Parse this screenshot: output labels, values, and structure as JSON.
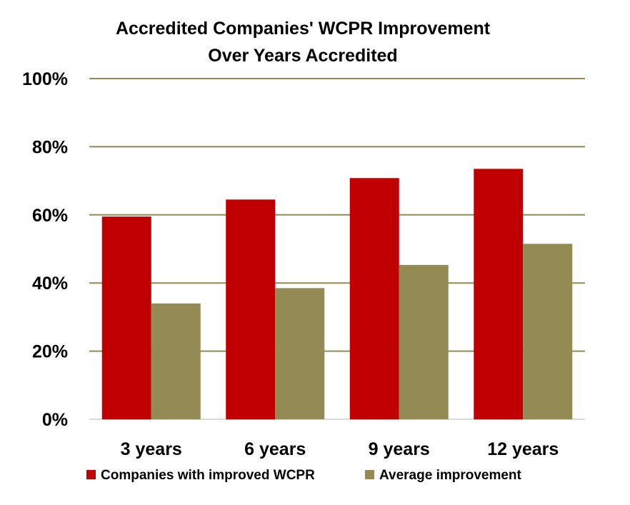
{
  "chart_data": {
    "type": "bar",
    "title_lines": [
      "Accredited Companies' WCPR Improvement",
      "Over Years Accredited"
    ],
    "categories": [
      "3 years",
      "6 years",
      "9 years",
      "12 years"
    ],
    "series": [
      {
        "name": "Companies with improved WCPR",
        "color": "#c00000",
        "values": [
          59.5,
          64.5,
          70.8,
          73.5
        ]
      },
      {
        "name": "Average improvement",
        "color": "#948a54",
        "values": [
          34.0,
          38.5,
          45.3,
          51.5
        ]
      }
    ],
    "ylim": [
      0,
      100
    ],
    "yticks": [
      0,
      20,
      40,
      60,
      80,
      100
    ],
    "ytick_labels": [
      "0%",
      "20%",
      "40%",
      "60%",
      "80%",
      "100%"
    ],
    "grid": true,
    "grid_color": "#948a54",
    "legend_position": "bottom"
  }
}
